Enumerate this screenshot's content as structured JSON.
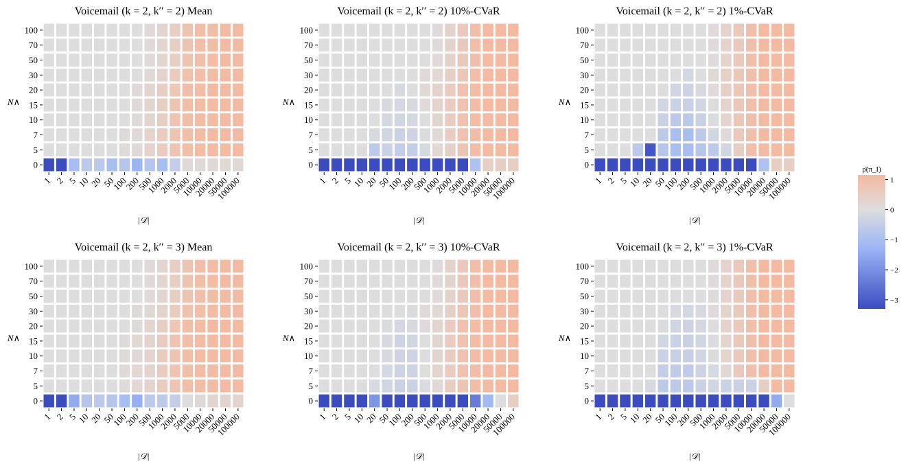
{
  "colorbar": {
    "label": "ρ̄(π_I)",
    "ticks": [
      1,
      0,
      -1,
      -2,
      -3
    ],
    "tick_labels": [
      "1",
      "0",
      "−1",
      "−2",
      "−3"
    ],
    "vmin": -3.3,
    "vmax": 1.15
  },
  "colors": {
    "low": "#3b4cc0",
    "mid": "#dddddd",
    "high": "#f4b9a1"
  },
  "chart_data": [
    {
      "type": "heatmap",
      "title": "Voicemail (k = 2, k′′ = 2) Mean",
      "xlabel": "|𝒟|",
      "ylabel": "N∧",
      "x_categories": [
        "1",
        "2",
        "5",
        "10",
        "20",
        "50",
        "100",
        "200",
        "500",
        "1000",
        "2000",
        "5000",
        "10000",
        "20000",
        "50000",
        "100000"
      ],
      "y_categories": [
        "100",
        "70",
        "50",
        "30",
        "20",
        "15",
        "10",
        "7",
        "5",
        "0"
      ],
      "values": [
        [
          0,
          0,
          0,
          0,
          0,
          0,
          0,
          0,
          0.05,
          0.15,
          0.3,
          0.5,
          0.6,
          0.65,
          0.7,
          0.7
        ],
        [
          0,
          0,
          0,
          0,
          0,
          0,
          0,
          0,
          0.05,
          0.15,
          0.3,
          0.5,
          0.6,
          0.65,
          0.7,
          0.7
        ],
        [
          0,
          0,
          0,
          0,
          0,
          0,
          0,
          0,
          0.05,
          0.15,
          0.3,
          0.5,
          0.6,
          0.65,
          0.7,
          0.7
        ],
        [
          0,
          0,
          0,
          0,
          0,
          0,
          0,
          0,
          0.1,
          0.2,
          0.35,
          0.55,
          0.6,
          0.65,
          0.7,
          0.7
        ],
        [
          0,
          0,
          0,
          0,
          0,
          0,
          0,
          0.05,
          0.15,
          0.3,
          0.45,
          0.6,
          0.65,
          0.7,
          0.7,
          0.7
        ],
        [
          0,
          0,
          0,
          0,
          0,
          0,
          0,
          0.05,
          0.15,
          0.3,
          0.5,
          0.6,
          0.65,
          0.7,
          0.7,
          0.7
        ],
        [
          0,
          0,
          0,
          0,
          0,
          0,
          0,
          0.05,
          0.15,
          0.3,
          0.5,
          0.6,
          0.65,
          0.7,
          0.7,
          0.7
        ],
        [
          0,
          0,
          0,
          0,
          0,
          0,
          0.05,
          0.1,
          0.2,
          0.35,
          0.5,
          0.6,
          0.65,
          0.7,
          0.7,
          0.7
        ],
        [
          0,
          0,
          0,
          0,
          0,
          0,
          0.05,
          0.1,
          0.2,
          0.35,
          0.5,
          0.6,
          0.65,
          0.7,
          0.7,
          0.7
        ],
        [
          -3.2,
          -3.2,
          -0.8,
          -0.5,
          -0.5,
          -0.8,
          -0.6,
          -1.0,
          -0.6,
          -0.8,
          -0.4,
          0.05,
          0.1,
          0.1,
          0.1,
          0.1
        ]
      ]
    },
    {
      "type": "heatmap",
      "title": "Voicemail (k = 2, k′′ = 2)  10%-CVaR",
      "xlabel": "|𝒟|",
      "ylabel": "N∧",
      "x_categories": [
        "1",
        "2",
        "5",
        "10",
        "20",
        "50",
        "100",
        "200",
        "500",
        "1000",
        "2000",
        "5000",
        "10000",
        "20000",
        "50000",
        "100000"
      ],
      "y_categories": [
        "100",
        "70",
        "50",
        "30",
        "20",
        "15",
        "10",
        "7",
        "5",
        "0"
      ],
      "values": [
        [
          0,
          0,
          0,
          0,
          0,
          0,
          0,
          0,
          0,
          0.05,
          0.2,
          0.4,
          0.6,
          0.7,
          0.7,
          0.7
        ],
        [
          0,
          0,
          0,
          0,
          0,
          0,
          0,
          0,
          0,
          0.05,
          0.2,
          0.4,
          0.6,
          0.7,
          0.7,
          0.7
        ],
        [
          0,
          0,
          0,
          0,
          0,
          0,
          0,
          0,
          0,
          0.05,
          0.2,
          0.4,
          0.6,
          0.7,
          0.7,
          0.7
        ],
        [
          0,
          0,
          0,
          0,
          0,
          0,
          0,
          0,
          0.05,
          0.1,
          0.25,
          0.45,
          0.6,
          0.7,
          0.7,
          0.7
        ],
        [
          0,
          0,
          0,
          0,
          0,
          0,
          -0.1,
          0,
          0.1,
          0.2,
          0.35,
          0.55,
          0.65,
          0.7,
          0.7,
          0.7
        ],
        [
          0,
          0,
          0,
          0,
          0,
          -0.1,
          -0.15,
          -0.1,
          0.05,
          0.2,
          0.35,
          0.55,
          0.65,
          0.7,
          0.7,
          0.7
        ],
        [
          0,
          0,
          0,
          0,
          0,
          -0.15,
          -0.2,
          -0.15,
          0,
          0.15,
          0.35,
          0.55,
          0.65,
          0.7,
          0.7,
          0.7
        ],
        [
          0,
          0,
          0,
          0,
          -0.1,
          -0.2,
          -0.3,
          -0.25,
          -0.05,
          0.1,
          0.3,
          0.55,
          0.65,
          0.7,
          0.7,
          0.7
        ],
        [
          0,
          0,
          0,
          0,
          -0.5,
          -0.3,
          -0.4,
          -0.4,
          -0.1,
          0.1,
          0.25,
          0.5,
          0.65,
          0.7,
          0.7,
          0.7
        ],
        [
          -3.2,
          -3.2,
          -3.2,
          -3.2,
          -3.2,
          -3.2,
          -3.2,
          -3.2,
          -3.2,
          -3.2,
          -3.2,
          -3.2,
          -0.7,
          0.3,
          0.3,
          0.3
        ]
      ]
    },
    {
      "type": "heatmap",
      "title": "Voicemail (k = 2, k′′ = 2)  1%-CVaR",
      "xlabel": "|𝒟|",
      "ylabel": "N∧",
      "x_categories": [
        "1",
        "2",
        "5",
        "10",
        "20",
        "50",
        "100",
        "200",
        "500",
        "1000",
        "2000",
        "5000",
        "10000",
        "20000",
        "50000",
        "100000"
      ],
      "y_categories": [
        "100",
        "70",
        "50",
        "30",
        "20",
        "15",
        "10",
        "7",
        "5",
        "0"
      ],
      "values": [
        [
          0,
          0,
          0,
          0,
          0,
          0,
          0,
          0,
          0,
          0.05,
          0.2,
          0.4,
          0.6,
          0.7,
          0.7,
          0.7
        ],
        [
          0,
          0,
          0,
          0,
          0,
          0,
          0,
          0,
          0,
          0.05,
          0.2,
          0.4,
          0.6,
          0.7,
          0.7,
          0.7
        ],
        [
          0,
          0,
          0,
          0,
          0,
          0,
          0,
          0,
          0,
          0.05,
          0.2,
          0.4,
          0.6,
          0.7,
          0.7,
          0.7
        ],
        [
          0,
          0,
          0,
          0,
          0,
          0,
          0,
          -0.15,
          0,
          0.1,
          0.25,
          0.45,
          0.6,
          0.7,
          0.7,
          0.7
        ],
        [
          0,
          0,
          0,
          0,
          0,
          0,
          -0.2,
          -0.25,
          -0.1,
          0.05,
          0.25,
          0.45,
          0.6,
          0.7,
          0.7,
          0.7
        ],
        [
          0,
          0,
          0,
          0,
          0,
          -0.2,
          -0.3,
          -0.3,
          -0.2,
          0,
          0.2,
          0.45,
          0.6,
          0.7,
          0.7,
          0.7
        ],
        [
          0,
          0,
          0,
          0,
          0,
          -0.3,
          -0.5,
          -0.5,
          -0.3,
          -0.05,
          0.15,
          0.45,
          0.6,
          0.7,
          0.7,
          0.7
        ],
        [
          0,
          0,
          0,
          0,
          0,
          -0.5,
          -0.8,
          -0.8,
          -0.5,
          -0.2,
          0.05,
          0.4,
          0.6,
          0.7,
          0.7,
          0.7
        ],
        [
          0,
          0,
          0,
          -0.5,
          -3.0,
          -0.6,
          -0.8,
          -0.8,
          -0.6,
          -0.5,
          -0.2,
          0.3,
          0.6,
          0.7,
          0.7,
          0.7
        ],
        [
          -3.2,
          -3.2,
          -3.2,
          -3.2,
          -3.2,
          -3.2,
          -3.2,
          -3.2,
          -3.2,
          -3.2,
          -3.2,
          -3.2,
          -3.2,
          -0.7,
          0.3,
          0.3
        ]
      ]
    },
    {
      "type": "heatmap",
      "title": "Voicemail (k = 2, k′′ = 3) Mean",
      "xlabel": "|𝒟|",
      "ylabel": "N∧",
      "x_categories": [
        "1",
        "2",
        "5",
        "10",
        "20",
        "50",
        "100",
        "200",
        "500",
        "1000",
        "2000",
        "5000",
        "10000",
        "20000",
        "50000",
        "100000"
      ],
      "y_categories": [
        "100",
        "70",
        "50",
        "30",
        "20",
        "15",
        "10",
        "7",
        "5",
        "0"
      ],
      "values": [
        [
          0,
          0,
          0,
          0,
          0,
          0,
          0,
          0,
          0.05,
          0.15,
          0.3,
          0.5,
          0.6,
          0.65,
          0.7,
          0.7
        ],
        [
          0,
          0,
          0,
          0,
          0,
          0,
          0,
          0,
          0.05,
          0.15,
          0.3,
          0.5,
          0.6,
          0.65,
          0.7,
          0.7
        ],
        [
          0,
          0,
          0,
          0,
          0,
          0,
          0,
          0,
          0.05,
          0.15,
          0.3,
          0.5,
          0.6,
          0.65,
          0.7,
          0.7
        ],
        [
          0,
          0,
          0,
          0,
          0,
          0,
          0,
          0.05,
          0.1,
          0.2,
          0.35,
          0.55,
          0.6,
          0.65,
          0.7,
          0.7
        ],
        [
          0,
          0,
          0,
          0,
          0,
          0,
          0,
          0.05,
          0.15,
          0.3,
          0.45,
          0.6,
          0.65,
          0.7,
          0.7,
          0.7
        ],
        [
          0,
          0,
          0,
          0,
          0,
          0,
          0.05,
          0.1,
          0.2,
          0.35,
          0.5,
          0.6,
          0.65,
          0.7,
          0.7,
          0.7
        ],
        [
          0,
          0,
          0,
          0,
          0,
          0,
          0.05,
          0.1,
          0.2,
          0.35,
          0.5,
          0.6,
          0.65,
          0.7,
          0.7,
          0.7
        ],
        [
          0,
          0,
          0,
          0,
          0,
          0,
          0.05,
          0.1,
          0.2,
          0.35,
          0.5,
          0.6,
          0.65,
          0.7,
          0.7,
          0.7
        ],
        [
          0,
          0,
          0,
          0,
          0,
          0,
          0.05,
          0.1,
          0.2,
          0.35,
          0.5,
          0.6,
          0.65,
          0.7,
          0.7,
          0.7
        ],
        [
          -3.2,
          -3.2,
          -1.2,
          -0.6,
          -0.5,
          -0.6,
          -0.8,
          -1.1,
          -0.5,
          -0.5,
          -0.4,
          0,
          0.1,
          0.15,
          0.15,
          0.2
        ]
      ]
    },
    {
      "type": "heatmap",
      "title": "Voicemail (k = 2, k′′ = 3)  10%-CVaR",
      "xlabel": "|𝒟|",
      "ylabel": "N∧",
      "x_categories": [
        "1",
        "2",
        "5",
        "10",
        "20",
        "50",
        "100",
        "200",
        "500",
        "1000",
        "2000",
        "5000",
        "10000",
        "20000",
        "50000",
        "100000"
      ],
      "y_categories": [
        "100",
        "70",
        "50",
        "30",
        "20",
        "15",
        "10",
        "7",
        "5",
        "0"
      ],
      "values": [
        [
          0,
          0,
          0,
          0,
          0,
          0,
          0,
          0,
          0,
          0.05,
          0.2,
          0.4,
          0.6,
          0.7,
          0.7,
          0.7
        ],
        [
          0,
          0,
          0,
          0,
          0,
          0,
          0,
          0,
          0,
          0.05,
          0.2,
          0.4,
          0.6,
          0.7,
          0.7,
          0.7
        ],
        [
          0,
          0,
          0,
          0,
          0,
          0,
          0,
          0,
          0,
          0.05,
          0.2,
          0.4,
          0.6,
          0.7,
          0.7,
          0.7
        ],
        [
          0,
          0,
          0,
          0,
          0,
          0,
          0,
          -0.05,
          0.05,
          0.1,
          0.25,
          0.45,
          0.6,
          0.7,
          0.7,
          0.7
        ],
        [
          0,
          0,
          0,
          0,
          0,
          -0.05,
          -0.15,
          -0.1,
          0.05,
          0.15,
          0.35,
          0.55,
          0.65,
          0.7,
          0.7,
          0.7
        ],
        [
          0,
          0,
          0,
          0,
          0,
          -0.1,
          -0.25,
          -0.2,
          0,
          0.15,
          0.35,
          0.55,
          0.65,
          0.7,
          0.7,
          0.7
        ],
        [
          0,
          0,
          0,
          0,
          0,
          -0.1,
          -0.25,
          -0.25,
          0,
          0.15,
          0.35,
          0.55,
          0.65,
          0.7,
          0.7,
          0.7
        ],
        [
          0,
          0,
          0,
          0,
          0,
          -0.15,
          -0.25,
          -0.25,
          0,
          0.15,
          0.35,
          0.55,
          0.65,
          0.7,
          0.7,
          0.7
        ],
        [
          0,
          0,
          0,
          0,
          -0.1,
          -0.2,
          -0.3,
          -0.3,
          -0.05,
          0.1,
          0.3,
          0.5,
          0.65,
          0.7,
          0.7,
          0.7
        ],
        [
          -3.2,
          -3.2,
          -3.2,
          -3.2,
          -1.7,
          -3.2,
          -3.2,
          -3.2,
          -3.2,
          -3.2,
          -3.2,
          -3.2,
          -2.2,
          -0.9,
          0,
          0.3
        ]
      ]
    },
    {
      "type": "heatmap",
      "title": "Voicemail (k = 2, k′′ = 3)  1%-CVaR",
      "xlabel": "|𝒟|",
      "ylabel": "N∧",
      "x_categories": [
        "1",
        "2",
        "5",
        "10",
        "20",
        "50",
        "100",
        "200",
        "500",
        "1000",
        "2000",
        "5000",
        "10000",
        "20000",
        "50000",
        "100000"
      ],
      "y_categories": [
        "100",
        "70",
        "50",
        "30",
        "20",
        "15",
        "10",
        "7",
        "5",
        "0"
      ],
      "values": [
        [
          0,
          0,
          0,
          0,
          0,
          0,
          0,
          0,
          0,
          0.05,
          0.2,
          0.4,
          0.6,
          0.7,
          0.7,
          0.7
        ],
        [
          0,
          0,
          0,
          0,
          0,
          0,
          0,
          0,
          0,
          0.05,
          0.2,
          0.4,
          0.6,
          0.7,
          0.7,
          0.7
        ],
        [
          0,
          0,
          0,
          0,
          0,
          0,
          0,
          0,
          0,
          0.05,
          0.2,
          0.4,
          0.6,
          0.7,
          0.7,
          0.7
        ],
        [
          0,
          0,
          0,
          0,
          0,
          0,
          -0.1,
          -0.15,
          -0.1,
          0.05,
          0.2,
          0.4,
          0.6,
          0.7,
          0.7,
          0.7
        ],
        [
          0,
          0,
          0,
          0,
          0,
          -0.05,
          -0.2,
          -0.25,
          -0.15,
          0,
          0.2,
          0.4,
          0.6,
          0.7,
          0.7,
          0.7
        ],
        [
          0,
          0,
          0,
          0,
          0,
          -0.2,
          -0.3,
          -0.3,
          -0.2,
          -0.05,
          0.15,
          0.4,
          0.6,
          0.7,
          0.7,
          0.7
        ],
        [
          0,
          0,
          0,
          0,
          0,
          -0.3,
          -0.35,
          -0.35,
          -0.2,
          -0.05,
          0.15,
          0.4,
          0.6,
          0.7,
          0.7,
          0.7
        ],
        [
          0,
          0,
          0,
          0,
          0,
          -0.4,
          -0.45,
          -0.45,
          -0.25,
          -0.1,
          0.1,
          0.4,
          0.6,
          0.7,
          0.7,
          0.7
        ],
        [
          0,
          0,
          0,
          0,
          -0.1,
          -0.5,
          -0.5,
          -0.5,
          -0.3,
          -0.2,
          -0.3,
          -0.3,
          -0.3,
          0.3,
          0.7,
          0.7
        ],
        [
          -3.2,
          -3.2,
          -3.2,
          -3.2,
          -3.2,
          -3.2,
          -3.2,
          -3.2,
          -3.2,
          -3.2,
          -3.2,
          -3.2,
          -3.2,
          -3.2,
          -1.2,
          0
        ]
      ]
    }
  ]
}
